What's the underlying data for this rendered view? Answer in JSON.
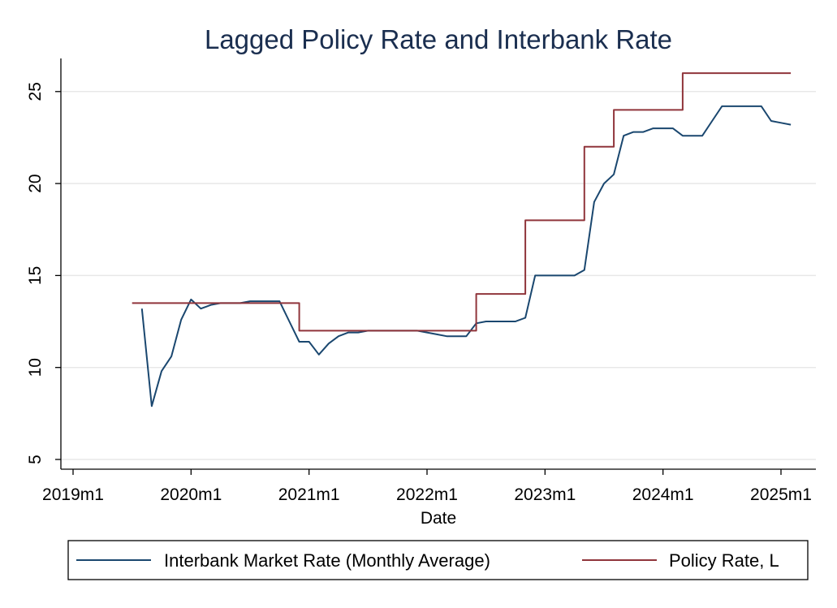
{
  "chart_data": {
    "type": "line",
    "title": "Lagged Policy Rate and Interbank Rate",
    "xlabel": "Date",
    "ylabel": "",
    "x_ticks": [
      "2019m1",
      "2020m1",
      "2021m1",
      "2022m1",
      "2023m1",
      "2024m1",
      "2025m1"
    ],
    "y_ticks": [
      5,
      10,
      15,
      20,
      25
    ],
    "xlim": [
      "2019m1",
      "2025m1"
    ],
    "ylim": [
      5,
      26.5
    ],
    "grid": true,
    "legend_position": "bottom",
    "series": [
      {
        "name": "Interbank Market Rate (Monthly Average)",
        "color": "#1a476f",
        "points": [
          [
            "2019m8",
            13.2
          ],
          [
            "2019m9",
            7.9
          ],
          [
            "2019m10",
            9.8
          ],
          [
            "2019m11",
            10.6
          ],
          [
            "2019m12",
            12.6
          ],
          [
            "2020m1",
            13.7
          ],
          [
            "2020m2",
            13.2
          ],
          [
            "2020m3",
            13.4
          ],
          [
            "2020m4",
            13.5
          ],
          [
            "2020m5",
            13.5
          ],
          [
            "2020m6",
            13.5
          ],
          [
            "2020m7",
            13.6
          ],
          [
            "2020m8",
            13.6
          ],
          [
            "2020m9",
            13.6
          ],
          [
            "2020m10",
            13.6
          ],
          [
            "2020m11",
            12.5
          ],
          [
            "2020m12",
            11.4
          ],
          [
            "2021m1",
            11.4
          ],
          [
            "2021m2",
            10.7
          ],
          [
            "2021m3",
            11.3
          ],
          [
            "2021m4",
            11.7
          ],
          [
            "2021m5",
            11.9
          ],
          [
            "2021m6",
            11.9
          ],
          [
            "2021m7",
            12.0
          ],
          [
            "2021m8",
            12.0
          ],
          [
            "2021m9",
            12.0
          ],
          [
            "2021m10",
            12.0
          ],
          [
            "2021m11",
            12.0
          ],
          [
            "2021m12",
            12.0
          ],
          [
            "2022m1",
            11.9
          ],
          [
            "2022m2",
            11.8
          ],
          [
            "2022m3",
            11.7
          ],
          [
            "2022m4",
            11.7
          ],
          [
            "2022m5",
            11.7
          ],
          [
            "2022m6",
            12.4
          ],
          [
            "2022m7",
            12.5
          ],
          [
            "2022m8",
            12.5
          ],
          [
            "2022m9",
            12.5
          ],
          [
            "2022m10",
            12.5
          ],
          [
            "2022m11",
            12.7
          ],
          [
            "2022m12",
            15.0
          ],
          [
            "2023m1",
            15.0
          ],
          [
            "2023m2",
            15.0
          ],
          [
            "2023m3",
            15.0
          ],
          [
            "2023m4",
            15.0
          ],
          [
            "2023m5",
            15.3
          ],
          [
            "2023m6",
            19.0
          ],
          [
            "2023m7",
            20.0
          ],
          [
            "2023m8",
            20.5
          ],
          [
            "2023m9",
            22.6
          ],
          [
            "2023m10",
            22.8
          ],
          [
            "2023m11",
            22.8
          ],
          [
            "2023m12",
            23.0
          ],
          [
            "2024m1",
            23.0
          ],
          [
            "2024m2",
            23.0
          ],
          [
            "2024m3",
            22.6
          ],
          [
            "2024m4",
            22.6
          ],
          [
            "2024m5",
            22.6
          ],
          [
            "2024m6",
            23.4
          ],
          [
            "2024m7",
            24.2
          ],
          [
            "2024m8",
            24.2
          ],
          [
            "2024m9",
            24.2
          ],
          [
            "2024m10",
            24.2
          ],
          [
            "2024m11",
            24.2
          ],
          [
            "2024m12",
            23.4
          ],
          [
            "2025m1",
            23.3
          ],
          [
            "2025m2",
            23.2
          ]
        ]
      },
      {
        "name": "Policy Rate, L",
        "color": "#90353b",
        "points": [
          [
            "2019m7",
            13.5
          ],
          [
            "2019m8",
            13.5
          ],
          [
            "2019m9",
            13.5
          ],
          [
            "2019m10",
            13.5
          ],
          [
            "2019m11",
            13.5
          ],
          [
            "2019m12",
            13.5
          ],
          [
            "2020m1",
            13.5
          ],
          [
            "2020m2",
            13.5
          ],
          [
            "2020m3",
            13.5
          ],
          [
            "2020m4",
            13.5
          ],
          [
            "2020m5",
            13.5
          ],
          [
            "2020m6",
            13.5
          ],
          [
            "2020m7",
            13.5
          ],
          [
            "2020m8",
            13.5
          ],
          [
            "2020m9",
            13.5
          ],
          [
            "2020m10",
            13.5
          ],
          [
            "2020m11",
            13.5
          ],
          [
            "2020m12",
            12.0
          ],
          [
            "2021m1",
            12.0
          ],
          [
            "2021m2",
            12.0
          ],
          [
            "2021m3",
            12.0
          ],
          [
            "2021m4",
            12.0
          ],
          [
            "2021m5",
            12.0
          ],
          [
            "2021m6",
            12.0
          ],
          [
            "2021m7",
            12.0
          ],
          [
            "2021m8",
            12.0
          ],
          [
            "2021m9",
            12.0
          ],
          [
            "2021m10",
            12.0
          ],
          [
            "2021m11",
            12.0
          ],
          [
            "2021m12",
            12.0
          ],
          [
            "2022m1",
            12.0
          ],
          [
            "2022m2",
            12.0
          ],
          [
            "2022m3",
            12.0
          ],
          [
            "2022m4",
            12.0
          ],
          [
            "2022m5",
            12.0
          ],
          [
            "2022m6",
            14.0
          ],
          [
            "2022m7",
            14.0
          ],
          [
            "2022m8",
            14.0
          ],
          [
            "2022m9",
            14.0
          ],
          [
            "2022m10",
            14.0
          ],
          [
            "2022m11",
            18.0
          ],
          [
            "2022m12",
            18.0
          ],
          [
            "2023m1",
            18.0
          ],
          [
            "2023m2",
            18.0
          ],
          [
            "2023m3",
            18.0
          ],
          [
            "2023m4",
            18.0
          ],
          [
            "2023m5",
            22.0
          ],
          [
            "2023m6",
            22.0
          ],
          [
            "2023m7",
            22.0
          ],
          [
            "2023m8",
            24.0
          ],
          [
            "2023m9",
            24.0
          ],
          [
            "2023m10",
            24.0
          ],
          [
            "2023m11",
            24.0
          ],
          [
            "2023m12",
            24.0
          ],
          [
            "2024m1",
            24.0
          ],
          [
            "2024m2",
            24.0
          ],
          [
            "2024m3",
            26.0
          ],
          [
            "2024m4",
            26.0
          ],
          [
            "2024m5",
            26.0
          ],
          [
            "2024m6",
            26.0
          ],
          [
            "2024m7",
            26.0
          ],
          [
            "2024m8",
            26.0
          ],
          [
            "2024m9",
            26.0
          ],
          [
            "2024m10",
            26.0
          ],
          [
            "2024m11",
            26.0
          ],
          [
            "2024m12",
            26.0
          ],
          [
            "2025m1",
            26.0
          ],
          [
            "2025m2",
            26.0
          ]
        ]
      }
    ]
  }
}
